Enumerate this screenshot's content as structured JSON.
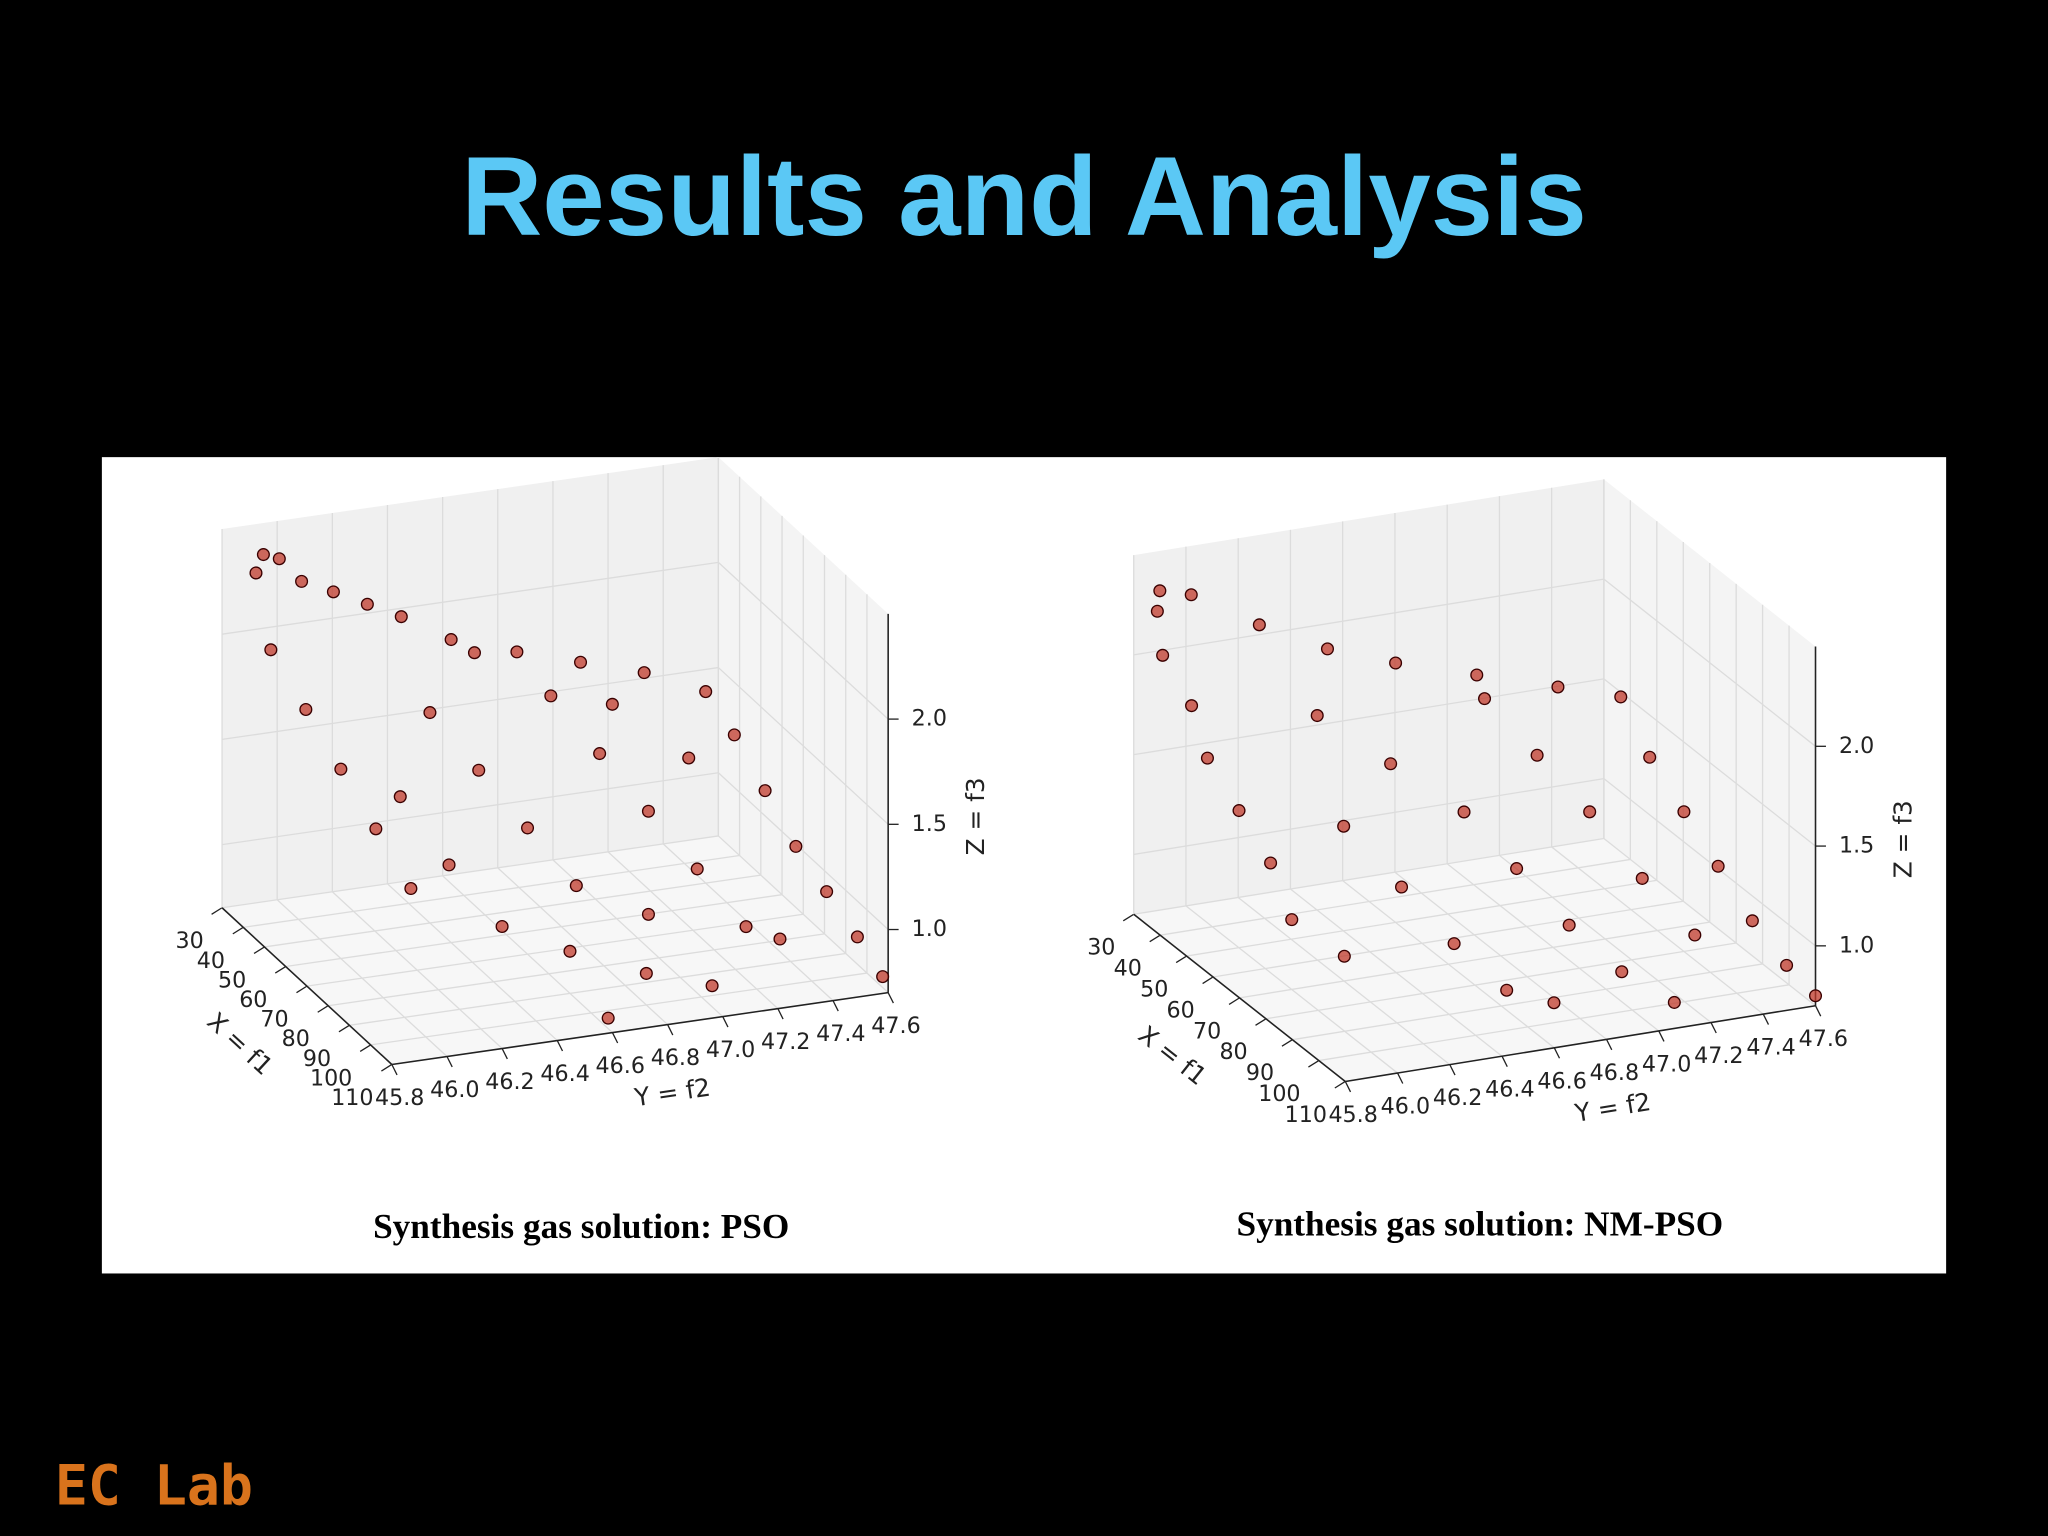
{
  "title": "Results and Analysis",
  "logo": "EC Lab",
  "chart_data": [
    {
      "type": "scatter3d",
      "title": "Synthesis gas solution: PSO",
      "xlabel": "X = f1",
      "ylabel": "Y = f2",
      "zlabel": "Z = f3",
      "color": "#c0392b",
      "grid": true,
      "xlim": [
        30,
        110
      ],
      "ylim": [
        45.8,
        47.6
      ],
      "zlim": [
        0.7,
        2.5
      ],
      "xticks": [
        30,
        40,
        50,
        60,
        70,
        80,
        90,
        100,
        110
      ],
      "yticks": [
        45.8,
        {
          "value": 46,
          "label": "46.0"
        },
        46.2,
        46.4,
        46.6,
        46.8,
        {
          "value": 47,
          "label": "47.0"
        },
        47.2,
        47.4,
        47.6
      ],
      "zticks": [
        {
          "value": 1,
          "label": "1.0"
        },
        1.5,
        {
          "value": 2,
          "label": "2.0"
        }
      ],
      "x": [
        30,
        31,
        33,
        35,
        37,
        40,
        43,
        47,
        52,
        56,
        60,
        63,
        70,
        78,
        86,
        94,
        102,
        110,
        40,
        50,
        60,
        70,
        80,
        50,
        60,
        70,
        80,
        90,
        100,
        55,
        65,
        75,
        85,
        95,
        105,
        45,
        58,
        68,
        88,
        98,
        72,
        62,
        84,
        108
      ],
      "y": [
        45.95,
        46.0,
        45.9,
        46.05,
        46.15,
        46.25,
        46.35,
        46.5,
        46.7,
        46.9,
        47.1,
        47.3,
        47.35,
        47.4,
        47.45,
        47.5,
        47.55,
        47.58,
        45.9,
        45.95,
        46.0,
        46.05,
        46.1,
        46.4,
        46.5,
        46.6,
        46.7,
        46.6,
        46.8,
        46.8,
        46.9,
        47.0,
        47.1,
        47.2,
        47.0,
        46.6,
        47.0,
        47.2,
        46.9,
        47.3,
        46.3,
        46.2,
        46.4,
        46.6
      ],
      "z": [
        2.35,
        2.33,
        2.3,
        2.25,
        2.2,
        2.15,
        2.1,
        2.0,
        1.95,
        1.9,
        1.85,
        1.75,
        1.6,
        1.4,
        1.2,
        1.05,
        0.9,
        0.78,
        2.0,
        1.8,
        1.6,
        1.4,
        1.2,
        1.7,
        1.5,
        1.3,
        1.1,
        0.9,
        0.85,
        1.75,
        1.55,
        1.35,
        1.15,
        0.95,
        0.8,
        1.9,
        1.7,
        1.5,
        1.0,
        0.9,
        1.2,
        1.45,
        1.0,
        0.75
      ]
    },
    {
      "type": "scatter3d",
      "title": "Synthesis gas solution: NM-PSO",
      "xlabel": "X = f1",
      "ylabel": "Y = f2",
      "zlabel": "Z = f3",
      "color": "#c0392b",
      "grid": true,
      "xlim": [
        30,
        110
      ],
      "ylim": [
        45.8,
        47.6
      ],
      "zlim": [
        0.7,
        2.5
      ],
      "xticks": [
        30,
        40,
        50,
        60,
        70,
        80,
        90,
        100,
        110
      ],
      "yticks": [
        45.8,
        {
          "value": 46,
          "label": "46.0"
        },
        46.2,
        46.4,
        46.6,
        46.8,
        {
          "value": 47,
          "label": "47.0"
        },
        47.2,
        47.4,
        47.6
      ],
      "zticks": [
        {
          "value": 1,
          "label": "1.0"
        },
        1.5,
        {
          "value": 2,
          "label": "2.0"
        }
      ],
      "x": [
        30,
        32,
        34,
        38,
        44,
        50,
        56,
        62,
        66,
        72,
        80,
        88,
        96,
        104,
        110,
        36,
        42,
        48,
        55,
        62,
        70,
        80,
        50,
        58,
        66,
        76,
        86,
        96,
        54,
        64,
        74,
        84,
        94,
        100,
        60,
        72,
        82,
        92,
        106
      ],
      "y": [
        45.9,
        46.0,
        45.85,
        46.2,
        46.4,
        46.6,
        46.85,
        47.1,
        47.3,
        47.35,
        47.4,
        47.45,
        47.5,
        47.55,
        47.6,
        45.85,
        45.9,
        45.9,
        45.95,
        46.0,
        46.0,
        46.1,
        46.3,
        46.5,
        46.7,
        46.8,
        46.9,
        47.0,
        46.9,
        47.0,
        47.1,
        47.2,
        47.3,
        46.7,
        46.3,
        46.4,
        46.5,
        46.6,
        47.1
      ],
      "z": [
        2.3,
        2.28,
        2.25,
        2.15,
        2.05,
        2.0,
        1.95,
        1.9,
        1.85,
        1.6,
        1.4,
        1.2,
        1.0,
        0.85,
        0.75,
        2.05,
        1.85,
        1.65,
        1.45,
        1.25,
        1.05,
        0.95,
        1.8,
        1.6,
        1.4,
        1.2,
        1.0,
        0.85,
        1.8,
        1.6,
        1.4,
        1.15,
        0.95,
        0.8,
        1.35,
        1.15,
        0.95,
        0.8,
        0.78
      ]
    }
  ]
}
